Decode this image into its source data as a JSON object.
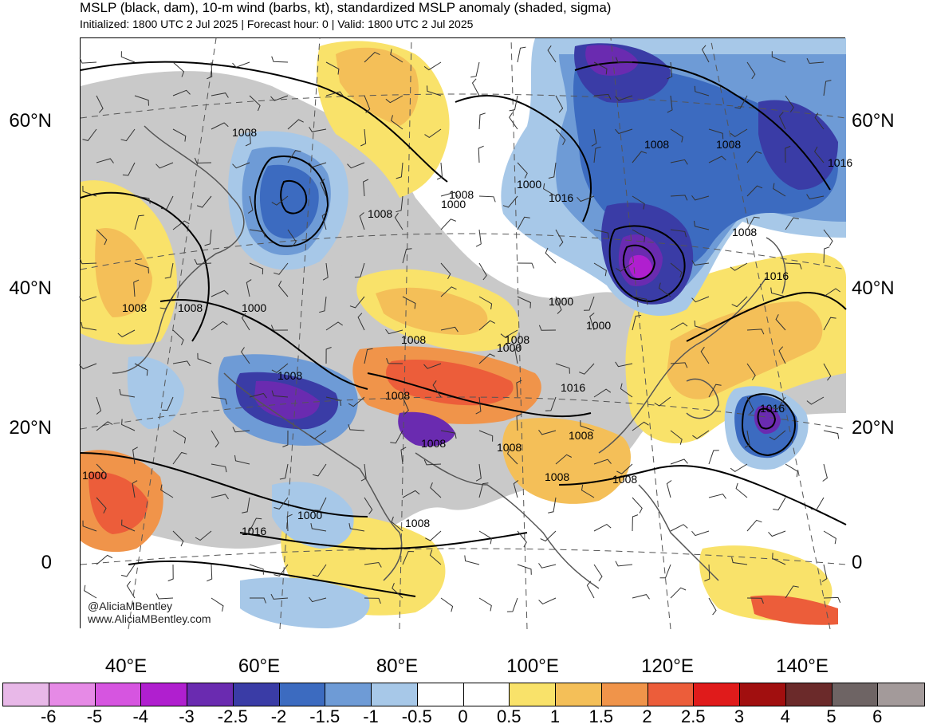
{
  "title": "MSLP (black, dam), 10-m wind (barbs, kt), standardized MSLP anomaly (shaded, sigma)",
  "subtitle": "Initialized: 1800 UTC 2 Jul 2025 | Forecast hour: 0 | Valid: 1800 UTC 2 Jul 2025",
  "lat_labels": [
    "60°N",
    "40°N",
    "20°N",
    "0"
  ],
  "lon_labels": [
    "40°E",
    "60°E",
    "80°E",
    "100°E",
    "120°E",
    "140°E"
  ],
  "credit": [
    "@AliciaMBentley",
    "www.AliciaMBentley.com"
  ],
  "isobar_labels": [
    "1008",
    "1008",
    "1008",
    "1000",
    "1000",
    "1000",
    "1000",
    "1008",
    "1016",
    "1016",
    "1016",
    "1008",
    "1008",
    "1008",
    "1016",
    "1008",
    "1000",
    "1000",
    "1000",
    "1008",
    "1008",
    "1000",
    "1008",
    "1016",
    "1008",
    "1008",
    "1008",
    "1008",
    "1008",
    "1008",
    "1008",
    "1016"
  ],
  "colorbar": {
    "labels": [
      "-6",
      "-5",
      "-4",
      "-3",
      "-2.5",
      "-2",
      "-1.5",
      "-1",
      "-0.5",
      "0",
      "0.5",
      "1",
      "1.5",
      "2",
      "2.5",
      "3",
      "4",
      "5",
      "6"
    ],
    "colors": [
      "#e8b8e8",
      "#e68ae6",
      "#d655e0",
      "#b01fcf",
      "#6a2bb0",
      "#3a3ca6",
      "#3c6bc0",
      "#6e9bd6",
      "#a7c8e8",
      "#ffffff",
      "#ffffff",
      "#f9e26a",
      "#f4bf58",
      "#f0944a",
      "#ec5d3a",
      "#e01b1b",
      "#a10f0f",
      "#6b2a2a",
      "#6e6464",
      "#a39a9a"
    ]
  },
  "anomaly_colors": {
    "neutral": "#c9c9c9",
    "ocean_neutral": "#ffffff",
    "neg_weak": "#a7c8e8",
    "neg_mod": "#6e9bd6",
    "neg_strong": "#3c6bc0",
    "neg_vstrong": "#3a3ca6",
    "neg_extreme": "#6a2bb0",
    "neg_max": "#b01fcf",
    "pos_weak": "#f9e26a",
    "pos_mod": "#f4bf58",
    "pos_strong": "#f0944a",
    "pos_vstrong": "#ec5d3a",
    "pos_extreme": "#e01b1b",
    "pos_max": "#a10f0f"
  }
}
